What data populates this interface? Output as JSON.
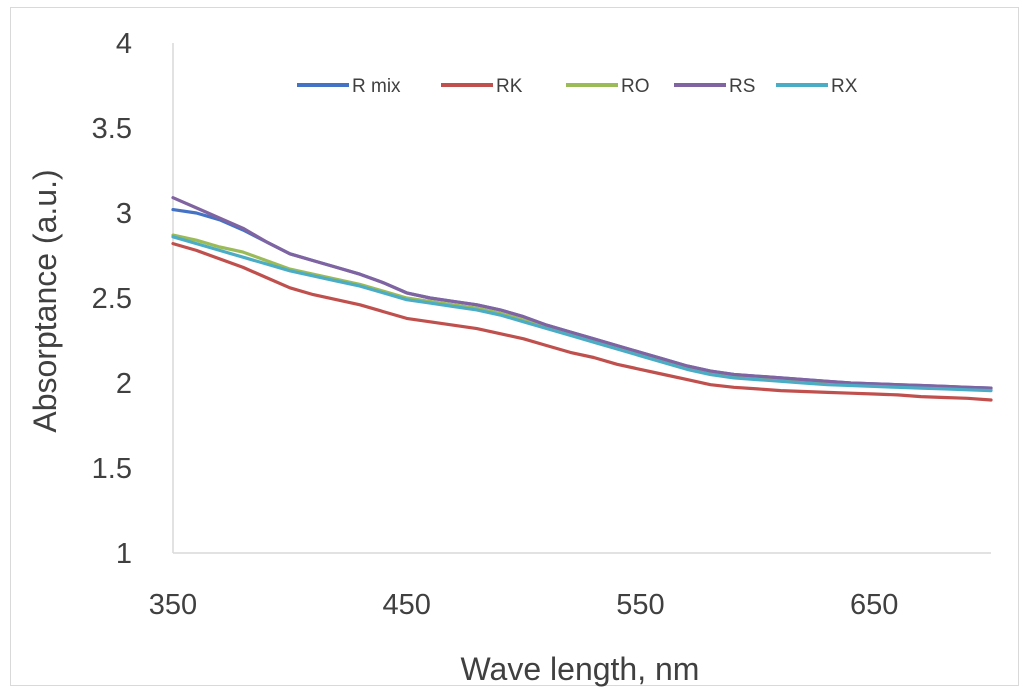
{
  "chart_data": {
    "type": "line",
    "title": "",
    "xlabel": "Wave length, nm",
    "ylabel": "Absorptance (a.u.)",
    "xlim": [
      350,
      700
    ],
    "ylim": [
      1,
      4
    ],
    "x_ticks": [
      "350",
      "450",
      "550",
      "650"
    ],
    "y_ticks": [
      "1",
      "1.5",
      "2",
      "2.5",
      "3",
      "3.5",
      "4"
    ],
    "grid": false,
    "legend_position": "top",
    "x": [
      350,
      360,
      370,
      380,
      390,
      400,
      410,
      420,
      430,
      440,
      450,
      460,
      470,
      480,
      490,
      500,
      510,
      520,
      530,
      540,
      550,
      560,
      570,
      580,
      590,
      600,
      610,
      620,
      630,
      640,
      650,
      660,
      670,
      680,
      690,
      700
    ],
    "series": [
      {
        "name": "R mix",
        "color": "#4472C4",
        "values": [
          3.02,
          3.0,
          2.96,
          2.9,
          2.83,
          2.76,
          2.72,
          2.68,
          2.64,
          2.59,
          2.53,
          2.5,
          2.48,
          2.46,
          2.43,
          2.39,
          2.34,
          2.3,
          2.26,
          2.22,
          2.18,
          2.14,
          2.1,
          2.07,
          2.05,
          2.04,
          2.03,
          2.02,
          2.01,
          2.0,
          1.995,
          1.99,
          1.985,
          1.98,
          1.975,
          1.97
        ]
      },
      {
        "name": "RK",
        "color": "#C0504D",
        "values": [
          2.82,
          2.78,
          2.73,
          2.68,
          2.62,
          2.56,
          2.52,
          2.49,
          2.46,
          2.42,
          2.38,
          2.36,
          2.34,
          2.32,
          2.29,
          2.26,
          2.22,
          2.18,
          2.15,
          2.11,
          2.08,
          2.05,
          2.02,
          1.99,
          1.975,
          1.965,
          1.955,
          1.95,
          1.945,
          1.94,
          1.935,
          1.93,
          1.92,
          1.915,
          1.91,
          1.9
        ]
      },
      {
        "name": "RO",
        "color": "#9BBB59",
        "values": [
          2.87,
          2.84,
          2.8,
          2.77,
          2.72,
          2.67,
          2.64,
          2.61,
          2.58,
          2.54,
          2.5,
          2.48,
          2.46,
          2.44,
          2.41,
          2.37,
          2.33,
          2.29,
          2.25,
          2.21,
          2.17,
          2.13,
          2.09,
          2.06,
          2.04,
          2.03,
          2.02,
          2.01,
          2.0,
          1.99,
          1.985,
          1.98,
          1.975,
          1.97,
          1.965,
          1.96
        ]
      },
      {
        "name": "RS",
        "color": "#8064A2",
        "values": [
          3.09,
          3.03,
          2.97,
          2.91,
          2.83,
          2.76,
          2.72,
          2.68,
          2.64,
          2.59,
          2.53,
          2.5,
          2.48,
          2.46,
          2.43,
          2.39,
          2.34,
          2.3,
          2.26,
          2.22,
          2.18,
          2.14,
          2.1,
          2.07,
          2.05,
          2.04,
          2.03,
          2.02,
          2.01,
          2.0,
          1.995,
          1.99,
          1.985,
          1.98,
          1.975,
          1.97
        ]
      },
      {
        "name": "RX",
        "color": "#4BACC6",
        "values": [
          2.86,
          2.82,
          2.78,
          2.74,
          2.7,
          2.66,
          2.63,
          2.6,
          2.57,
          2.53,
          2.49,
          2.47,
          2.45,
          2.43,
          2.4,
          2.36,
          2.32,
          2.28,
          2.24,
          2.2,
          2.16,
          2.12,
          2.08,
          2.05,
          2.03,
          2.02,
          2.01,
          2.0,
          1.99,
          1.985,
          1.98,
          1.975,
          1.97,
          1.965,
          1.96,
          1.955
        ]
      }
    ]
  }
}
